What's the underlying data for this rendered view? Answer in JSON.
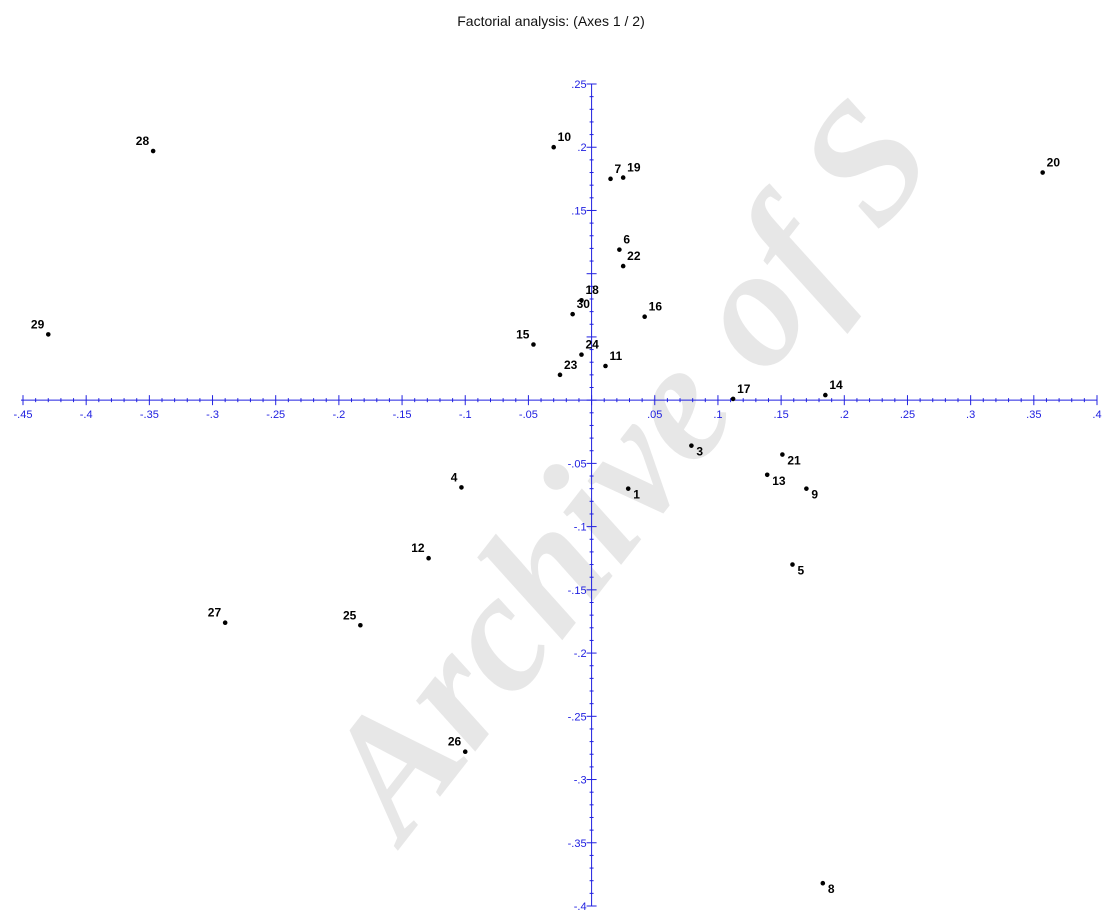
{
  "watermark": "Archive of S",
  "colors": {
    "axis": "#2020e0",
    "points": "#000000",
    "title": "#111111"
  },
  "chart_data": {
    "type": "scatter",
    "title": "Factorial analysis: (Axes 1 / 2)",
    "xlabel": "",
    "ylabel": "",
    "xlim": [
      -0.45,
      0.4
    ],
    "ylim": [
      -0.4,
      0.25
    ],
    "grid": false,
    "x_ticks": [
      -0.45,
      -0.4,
      -0.35,
      -0.3,
      -0.25,
      -0.2,
      -0.15,
      -0.1,
      -0.05,
      0.05,
      0.1,
      0.15,
      0.2,
      0.25,
      0.3,
      0.35,
      0.4
    ],
    "x_tick_labels": [
      "-.45",
      "-.4",
      "-.35",
      "-.3",
      "-.25",
      "-.2",
      "-.15",
      "-.1",
      "-.05",
      ".05",
      ".1",
      ".15",
      ".2",
      ".25",
      ".3",
      ".35",
      ".4"
    ],
    "y_ticks": [
      0.25,
      0.2,
      0.15,
      -0.05,
      -0.1,
      -0.15,
      -0.2,
      -0.25,
      -0.3,
      -0.35,
      -0.4
    ],
    "y_tick_labels": [
      ".25",
      ".2",
      ".15",
      "-.05",
      "-.1",
      "-.15",
      "-.2",
      "-.25",
      "-.3",
      "-.35",
      "-.4"
    ],
    "points": [
      {
        "label": "1",
        "x": 0.029,
        "y": -0.07
      },
      {
        "label": "3",
        "x": 0.079,
        "y": -0.036
      },
      {
        "label": "4",
        "x": -0.103,
        "y": -0.069
      },
      {
        "label": "5",
        "x": 0.159,
        "y": -0.13
      },
      {
        "label": "6",
        "x": 0.022,
        "y": 0.119
      },
      {
        "label": "7",
        "x": 0.015,
        "y": 0.175
      },
      {
        "label": "8",
        "x": 0.183,
        "y": -0.382
      },
      {
        "label": "9",
        "x": 0.17,
        "y": -0.07
      },
      {
        "label": "10",
        "x": -0.03,
        "y": 0.2
      },
      {
        "label": "11",
        "x": 0.011,
        "y": 0.027
      },
      {
        "label": "12",
        "x": -0.129,
        "y": -0.125
      },
      {
        "label": "13",
        "x": 0.139,
        "y": -0.059
      },
      {
        "label": "14",
        "x": 0.185,
        "y": 0.004
      },
      {
        "label": "15",
        "x": -0.046,
        "y": 0.044
      },
      {
        "label": "16",
        "x": 0.042,
        "y": 0.066
      },
      {
        "label": "17",
        "x": 0.112,
        "y": 0.001
      },
      {
        "label": "18",
        "x": -0.008,
        "y": 0.079
      },
      {
        "label": "19",
        "x": 0.025,
        "y": 0.176
      },
      {
        "label": "20",
        "x": 0.357,
        "y": 0.18
      },
      {
        "label": "21",
        "x": 0.151,
        "y": -0.043
      },
      {
        "label": "22",
        "x": 0.025,
        "y": 0.106
      },
      {
        "label": "23",
        "x": -0.025,
        "y": 0.02
      },
      {
        "label": "24",
        "x": -0.008,
        "y": 0.036
      },
      {
        "label": "25",
        "x": -0.183,
        "y": -0.178
      },
      {
        "label": "26",
        "x": -0.1,
        "y": -0.278
      },
      {
        "label": "27",
        "x": -0.29,
        "y": -0.176
      },
      {
        "label": "28",
        "x": -0.347,
        "y": 0.197
      },
      {
        "label": "29",
        "x": -0.43,
        "y": 0.052
      },
      {
        "label": "30",
        "x": -0.015,
        "y": 0.068
      }
    ]
  }
}
